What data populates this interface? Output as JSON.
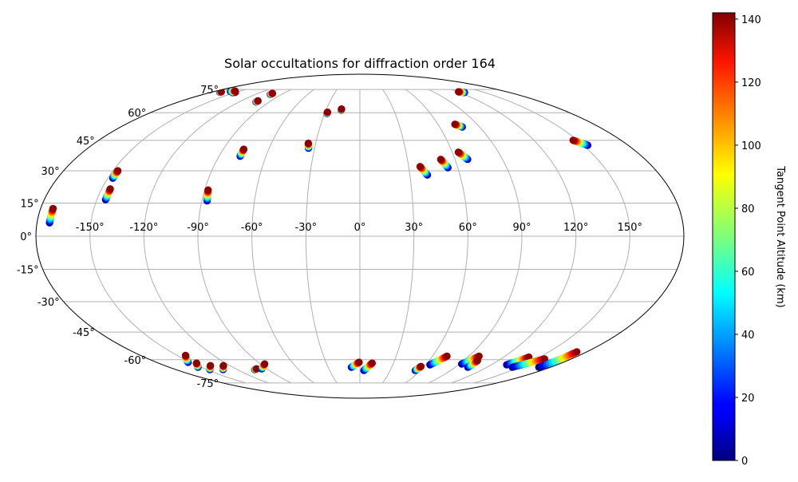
{
  "chart_data": {
    "type": "scatter",
    "projection": "mollweide",
    "title": "Solar occultations for diffraction order 164",
    "x_ticks": [
      "-150°",
      "-120°",
      "-90°",
      "-60°",
      "-30°",
      "0°",
      "30°",
      "60°",
      "90°",
      "120°",
      "150°"
    ],
    "x_tick_values": [
      -150,
      -120,
      -90,
      -60,
      -30,
      0,
      30,
      60,
      90,
      120,
      150
    ],
    "y_ticks": [
      "-75°",
      "-60°",
      "-45°",
      "-30°",
      "-15°",
      "0°",
      "15°",
      "30°",
      "45°",
      "60°",
      "75°"
    ],
    "y_tick_values": [
      -75,
      -60,
      -45,
      -30,
      -15,
      0,
      15,
      30,
      45,
      60,
      75
    ],
    "grid": true,
    "colorbar": {
      "label": "Tangent Point Altitude (km)",
      "range": [
        0,
        142
      ],
      "ticks": [
        "0",
        "20",
        "40",
        "60",
        "80",
        "100",
        "120",
        "140"
      ],
      "tick_values": [
        0,
        20,
        40,
        60,
        80,
        100,
        120,
        140
      ],
      "colormap": "jet"
    },
    "tracks_note": "each track: longitude/latitude at lowest (0 km) and highest (~140 km) tangent altitude",
    "tracks": [
      {
        "lon0": -173,
        "lat0": 6,
        "lon1": -173,
        "lat1": 12.5
      },
      {
        "lon0": -145,
        "lat0": 16.5,
        "lon1": -145,
        "lat1": 21.5
      },
      {
        "lon0": -147,
        "lat0": 26.5,
        "lon1": -147,
        "lat1": 30
      },
      {
        "lon0": -87,
        "lat0": 16,
        "lon1": -88,
        "lat1": 21
      },
      {
        "lon0": -76.5,
        "lat0": 37,
        "lon1": -76.5,
        "lat1": 40.5
      },
      {
        "lon0": -34,
        "lat0": 41,
        "lon1": -35,
        "lat1": 43.5
      },
      {
        "lon0": -28,
        "lat0": 59.5,
        "lon1": -28,
        "lat1": 60.3
      },
      {
        "lon0": -16.5,
        "lat0": 61.5,
        "lon1": -16.5,
        "lat1": 62.2
      },
      {
        "lon0": -103,
        "lat0": 66.5,
        "lon1": -103,
        "lat1": 67.2
      },
      {
        "lon0": -103,
        "lat0": 71.5,
        "lon1": -103,
        "lat1": 72.2
      },
      {
        "lon0": -151,
        "lat0": 72.5,
        "lon1": -151,
        "lat1": 73
      },
      {
        "lon0": -160,
        "lat0": 73.5,
        "lon1": -156,
        "lat1": 73.8
      },
      {
        "lon0": -170,
        "lat0": 73,
        "lon1": -170,
        "lat1": 73.3
      },
      {
        "lon0": 77,
        "lat0": 52,
        "lon1": 73,
        "lat1": 53.5
      },
      {
        "lon0": 126,
        "lat0": 72.8,
        "lon1": 121,
        "lat1": 73.3
      },
      {
        "lon0": 68,
        "lat0": 35.5,
        "lon1": 64,
        "lat1": 39
      },
      {
        "lon0": 54,
        "lat0": 31.5,
        "lon1": 51,
        "lat1": 35.5
      },
      {
        "lon0": 40.5,
        "lat0": 28,
        "lon1": 37,
        "lat1": 32
      },
      {
        "lon0": 153,
        "lat0": 42.5,
        "lon1": 147,
        "lat1": 45
      },
      {
        "lon0": -152,
        "lat0": -61.5,
        "lon1": -143,
        "lat1": -57.5
      },
      {
        "lon0": -153,
        "lat0": -64.5,
        "lon1": -146,
        "lat1": -62
      },
      {
        "lon0": -147,
        "lat0": -66,
        "lon1": -138,
        "lat1": -63.5
      },
      {
        "lon0": -134,
        "lat0": -66,
        "lon1": -126,
        "lat1": -63.5
      },
      {
        "lon0": -103,
        "lat0": -66,
        "lon1": -100,
        "lat1": -65.5
      },
      {
        "lon0": -95,
        "lat0": -65.5,
        "lon1": -86,
        "lat1": -62.5
      },
      {
        "lon0": -8,
        "lat0": -64.5,
        "lon1": -0.7,
        "lat1": -61.5
      },
      {
        "lon0": 4,
        "lat0": -66.5,
        "lon1": 11,
        "lat1": -62
      },
      {
        "lon0": 55,
        "lat0": -66.5,
        "lon1": 57,
        "lat1": -64
      },
      {
        "lon0": 64,
        "lat0": -63,
        "lon1": 72,
        "lat1": -58
      },
      {
        "lon0": 92,
        "lat0": -62.5,
        "lon1": 98.6,
        "lat1": -58
      },
      {
        "lon0": 102,
        "lat0": -64.5,
        "lon1": 102,
        "lat1": -60.5
      },
      {
        "lon0": 134,
        "lat0": -63,
        "lon1": 141,
        "lat1": -58.5
      },
      {
        "lon0": 144,
        "lat0": -64.5,
        "lon1": 157,
        "lat1": -59.5
      },
      {
        "lon0": 169,
        "lat0": -64.5,
        "lon1": 172,
        "lat1": -55.5
      }
    ]
  }
}
